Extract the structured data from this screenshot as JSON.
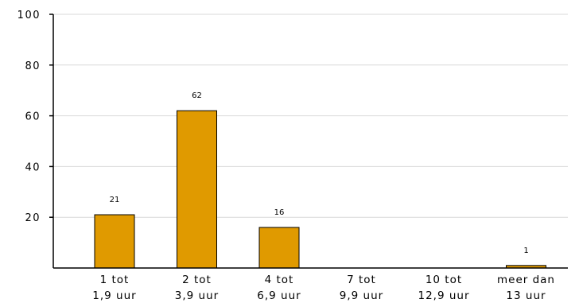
{
  "chart_data": {
    "type": "bar",
    "categories": [
      [
        "1 tot",
        "1,9 uur"
      ],
      [
        "2 tot",
        "3,9 uur"
      ],
      [
        "4 tot",
        "6,9 uur"
      ],
      [
        "7 tot",
        "9,9 uur"
      ],
      [
        "10 tot",
        "12,9 uur"
      ],
      [
        "meer dan",
        "13 uur"
      ]
    ],
    "values": [
      21,
      62,
      16,
      0,
      0,
      1
    ],
    "data_labels": [
      "21",
      "62",
      "16",
      "",
      "",
      "1"
    ],
    "ylim": [
      0,
      100
    ],
    "yticks": [
      20,
      40,
      60,
      80,
      100
    ],
    "ytick_labels": [
      "20",
      "40",
      "60",
      "80",
      "100"
    ],
    "grid": true,
    "bar_color": "#E09A00",
    "title": "",
    "xlabel": "",
    "ylabel": ""
  }
}
